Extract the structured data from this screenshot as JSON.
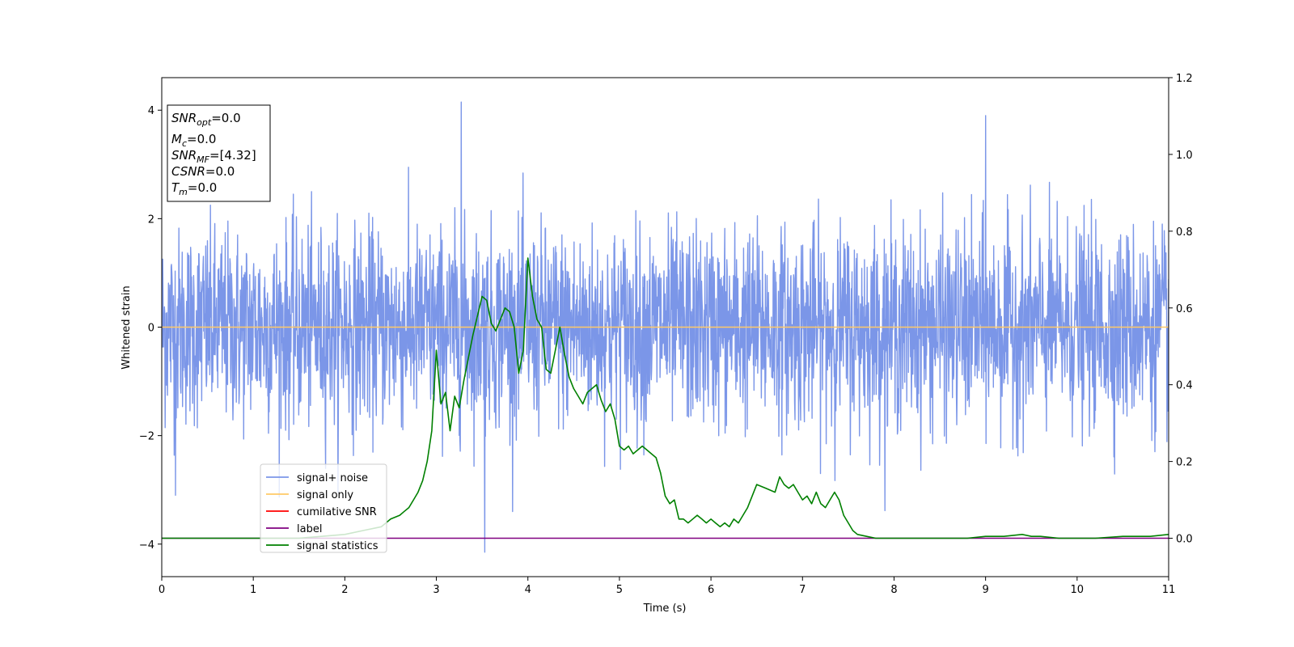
{
  "chart_data": {
    "type": "line",
    "xlabel": "Time (s)",
    "ylabel": "Whitened strain",
    "xlim": [
      0,
      11
    ],
    "ylim_left": [
      -4.6,
      4.6
    ],
    "ylim_right": [
      -0.1,
      1.2
    ],
    "x_ticks": [
      0,
      1,
      2,
      3,
      4,
      5,
      6,
      7,
      8,
      9,
      10,
      11
    ],
    "y_ticks_left": [
      -4,
      -2,
      0,
      2,
      4
    ],
    "y_ticks_right": [
      0.0,
      0.2,
      0.4,
      0.6,
      0.8,
      1.0,
      1.2
    ],
    "legend_position": "lower-left",
    "grid": false,
    "info_box": {
      "lines": [
        {
          "var": "SNR",
          "sub": "opt",
          "value": "=0.0"
        },
        {
          "var": "M",
          "sub": "c",
          "value": "=0.0"
        },
        {
          "var": "SNR",
          "sub": "MF",
          "value": "=[4.32]"
        },
        {
          "var": "CSNR",
          "sub": "",
          "value": "=0.0"
        },
        {
          "var": "T",
          "sub": "m",
          "value": "=0.0"
        }
      ]
    },
    "series": [
      {
        "name": "signal+ noise",
        "axis": "left",
        "color": "#7b96e8",
        "kind": "noise",
        "sigma": 0.9,
        "x_range": [
          0,
          11
        ],
        "approx_peaks": [
          [
            3.27,
            4.15
          ],
          [
            3.53,
            -4.15
          ],
          [
            9.0,
            3.9
          ],
          [
            0.15,
            -3.1
          ]
        ]
      },
      {
        "name": "signal only",
        "axis": "left",
        "color": "#ffc966",
        "x": [
          0,
          11
        ],
        "y": [
          0,
          0
        ]
      },
      {
        "name": "cumilative SNR",
        "axis": "left",
        "color": "#ff0000",
        "x": [],
        "y": []
      },
      {
        "name": "label",
        "axis": "right",
        "color": "#800080",
        "x": [
          0,
          11
        ],
        "y": [
          0,
          0
        ]
      },
      {
        "name": "signal statistics",
        "axis": "right",
        "color": "#008000",
        "x": [
          0,
          0.5,
          1.0,
          1.5,
          2.0,
          2.2,
          2.4,
          2.5,
          2.6,
          2.65,
          2.7,
          2.75,
          2.8,
          2.85,
          2.9,
          2.95,
          3.0,
          3.05,
          3.1,
          3.15,
          3.2,
          3.25,
          3.3,
          3.4,
          3.5,
          3.55,
          3.6,
          3.65,
          3.7,
          3.75,
          3.8,
          3.85,
          3.9,
          3.95,
          4.0,
          4.05,
          4.1,
          4.15,
          4.2,
          4.25,
          4.3,
          4.35,
          4.4,
          4.45,
          4.5,
          4.55,
          4.6,
          4.65,
          4.7,
          4.75,
          4.8,
          4.85,
          4.9,
          4.95,
          5.0,
          5.05,
          5.1,
          5.15,
          5.2,
          5.25,
          5.3,
          5.35,
          5.4,
          5.45,
          5.5,
          5.55,
          5.6,
          5.65,
          5.7,
          5.75,
          5.8,
          5.85,
          5.9,
          5.95,
          6.0,
          6.05,
          6.1,
          6.15,
          6.2,
          6.25,
          6.3,
          6.35,
          6.4,
          6.5,
          6.6,
          6.7,
          6.75,
          6.8,
          6.85,
          6.9,
          6.95,
          7.0,
          7.05,
          7.1,
          7.15,
          7.2,
          7.25,
          7.3,
          7.35,
          7.4,
          7.45,
          7.5,
          7.55,
          7.6,
          7.7,
          7.8,
          7.9,
          8.0,
          8.2,
          8.5,
          8.8,
          9.0,
          9.2,
          9.4,
          9.5,
          9.6,
          9.8,
          10.0,
          10.2,
          10.5,
          10.8,
          11.0
        ],
        "y": [
          0.0,
          0.0,
          0.0,
          0.0,
          0.01,
          0.02,
          0.03,
          0.05,
          0.06,
          0.07,
          0.08,
          0.1,
          0.12,
          0.15,
          0.2,
          0.28,
          0.49,
          0.35,
          0.38,
          0.28,
          0.37,
          0.34,
          0.41,
          0.53,
          0.63,
          0.62,
          0.56,
          0.54,
          0.57,
          0.6,
          0.59,
          0.55,
          0.43,
          0.49,
          0.73,
          0.63,
          0.57,
          0.55,
          0.44,
          0.43,
          0.49,
          0.55,
          0.48,
          0.42,
          0.39,
          0.37,
          0.35,
          0.38,
          0.39,
          0.4,
          0.36,
          0.33,
          0.35,
          0.31,
          0.24,
          0.23,
          0.24,
          0.22,
          0.23,
          0.24,
          0.23,
          0.22,
          0.21,
          0.17,
          0.11,
          0.09,
          0.1,
          0.05,
          0.05,
          0.04,
          0.05,
          0.06,
          0.05,
          0.04,
          0.05,
          0.04,
          0.03,
          0.04,
          0.03,
          0.05,
          0.04,
          0.06,
          0.08,
          0.14,
          0.13,
          0.12,
          0.16,
          0.14,
          0.13,
          0.14,
          0.12,
          0.1,
          0.11,
          0.09,
          0.12,
          0.09,
          0.08,
          0.1,
          0.12,
          0.1,
          0.06,
          0.04,
          0.02,
          0.01,
          0.005,
          0.0,
          0.0,
          0.0,
          0.0,
          0.0,
          0.0,
          0.005,
          0.005,
          0.01,
          0.005,
          0.005,
          0.0,
          0.0,
          0.0,
          0.005,
          0.005,
          0.01
        ]
      }
    ]
  }
}
